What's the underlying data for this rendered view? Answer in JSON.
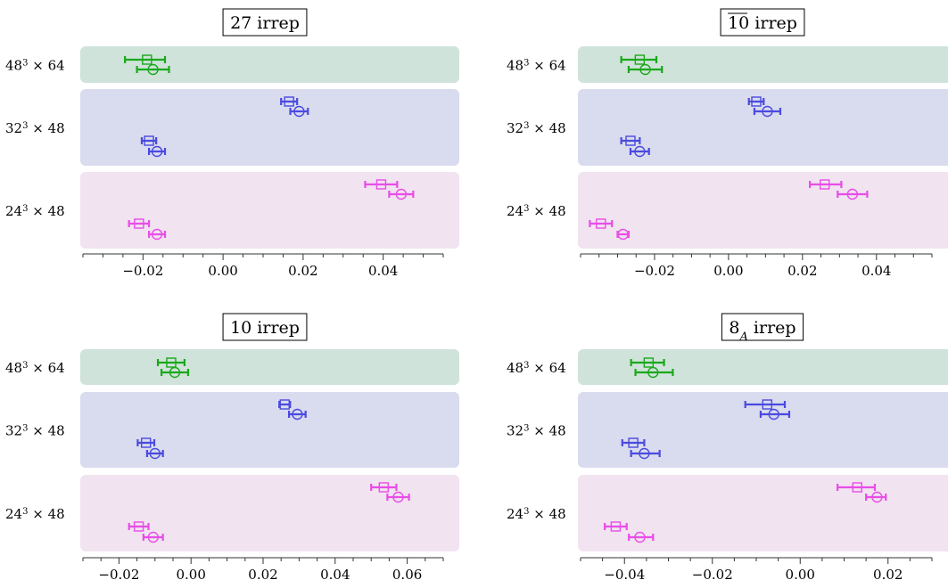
{
  "colors": {
    "band_48": "#cfe3da",
    "band_32": "#d9dbee",
    "band_24": "#f1e3f0",
    "green": "#1aa81a",
    "blue": "#4a4ae0",
    "magenta": "#e84de8"
  },
  "chart_data": [
    {
      "type": "scatter",
      "title": "27 irrep",
      "groups": [
        "48³ × 64",
        "32³ × 48",
        "24³ × 48"
      ],
      "xlim": [
        -0.035,
        0.055
      ],
      "xticks": [
        -0.02,
        0.0,
        0.02,
        0.04
      ],
      "tick_labels": [
        "−0.02",
        "0.00",
        "0.02",
        "0.04"
      ],
      "series": [
        {
          "group": 0,
          "marker": "square",
          "color": "green",
          "value": -0.019,
          "err_low": -0.0245,
          "err_high": -0.0145
        },
        {
          "group": 0,
          "marker": "circle",
          "color": "green",
          "value": -0.0175,
          "err_low": -0.0215,
          "err_high": -0.0135
        },
        {
          "group": 1,
          "marker": "square",
          "color": "blue",
          "value": 0.0165,
          "err_low": 0.0145,
          "err_high": 0.0185
        },
        {
          "group": 1,
          "marker": "circle",
          "color": "blue",
          "value": 0.019,
          "err_low": 0.0168,
          "err_high": 0.0212
        },
        {
          "group": 1,
          "marker": "square",
          "color": "blue",
          "value": -0.0185,
          "err_low": -0.0203,
          "err_high": -0.0167
        },
        {
          "group": 1,
          "marker": "circle",
          "color": "blue",
          "value": -0.0165,
          "err_low": -0.0185,
          "err_high": -0.0145
        },
        {
          "group": 2,
          "marker": "square",
          "color": "magenta",
          "value": 0.0395,
          "err_low": 0.0355,
          "err_high": 0.0435
        },
        {
          "group": 2,
          "marker": "circle",
          "color": "magenta",
          "value": 0.0445,
          "err_low": 0.0415,
          "err_high": 0.0475
        },
        {
          "group": 2,
          "marker": "square",
          "color": "magenta",
          "value": -0.021,
          "err_low": -0.0235,
          "err_high": -0.0185
        },
        {
          "group": 2,
          "marker": "circle",
          "color": "magenta",
          "value": -0.0165,
          "err_low": -0.0185,
          "err_high": -0.0145
        }
      ]
    },
    {
      "type": "scatter",
      "title": "10 irrep",
      "title_overline": true,
      "groups": [
        "48³ × 64",
        "32³ × 48",
        "24³ × 48"
      ],
      "xlim": [
        -0.04,
        0.055
      ],
      "xticks": [
        -0.02,
        0.0,
        0.02,
        0.04
      ],
      "tick_labels": [
        "−0.02",
        "0.00",
        "0.02",
        "0.04"
      ],
      "series": [
        {
          "group": 0,
          "marker": "square",
          "color": "green",
          "value": -0.024,
          "err_low": -0.029,
          "err_high": -0.0195
        },
        {
          "group": 0,
          "marker": "circle",
          "color": "green",
          "value": -0.0225,
          "err_low": -0.027,
          "err_high": -0.018
        },
        {
          "group": 1,
          "marker": "square",
          "color": "blue",
          "value": 0.0075,
          "err_low": 0.0055,
          "err_high": 0.0095
        },
        {
          "group": 1,
          "marker": "circle",
          "color": "blue",
          "value": 0.0105,
          "err_low": 0.007,
          "err_high": 0.014
        },
        {
          "group": 1,
          "marker": "square",
          "color": "blue",
          "value": -0.0265,
          "err_low": -0.029,
          "err_high": -0.024
        },
        {
          "group": 1,
          "marker": "circle",
          "color": "blue",
          "value": -0.024,
          "err_low": -0.0265,
          "err_high": -0.0215
        },
        {
          "group": 2,
          "marker": "square",
          "color": "magenta",
          "value": 0.026,
          "err_low": 0.022,
          "err_high": 0.0305
        },
        {
          "group": 2,
          "marker": "circle",
          "color": "magenta",
          "value": 0.0335,
          "err_low": 0.0295,
          "err_high": 0.0375
        },
        {
          "group": 2,
          "marker": "square",
          "color": "magenta",
          "value": -0.0345,
          "err_low": -0.0375,
          "err_high": -0.0315
        },
        {
          "group": 2,
          "marker": "circle",
          "color": "magenta",
          "value": -0.0285,
          "err_low": -0.03,
          "err_high": -0.027
        }
      ]
    },
    {
      "type": "scatter",
      "title": "10 irrep",
      "groups": [
        "48³ × 64",
        "32³ × 48",
        "24³ × 48"
      ],
      "xlim": [
        -0.03,
        0.07
      ],
      "xticks": [
        -0.02,
        0.0,
        0.02,
        0.04,
        0.06
      ],
      "tick_labels": [
        "−0.02",
        "0.00",
        "0.02",
        "0.04",
        "0.06"
      ],
      "series": [
        {
          "group": 0,
          "marker": "square",
          "color": "green",
          "value": -0.0055,
          "err_low": -0.0092,
          "err_high": -0.0018
        },
        {
          "group": 0,
          "marker": "circle",
          "color": "green",
          "value": -0.0045,
          "err_low": -0.0082,
          "err_high": -0.0008
        },
        {
          "group": 1,
          "marker": "square",
          "color": "blue",
          "value": 0.026,
          "err_low": 0.0245,
          "err_high": 0.0275
        },
        {
          "group": 1,
          "marker": "circle",
          "color": "blue",
          "value": 0.0295,
          "err_low": 0.0272,
          "err_high": 0.0318
        },
        {
          "group": 1,
          "marker": "square",
          "color": "blue",
          "value": -0.0125,
          "err_low": -0.0148,
          "err_high": -0.0102
        },
        {
          "group": 1,
          "marker": "circle",
          "color": "blue",
          "value": -0.01,
          "err_low": -0.0122,
          "err_high": -0.0078
        },
        {
          "group": 2,
          "marker": "square",
          "color": "magenta",
          "value": 0.0535,
          "err_low": 0.05,
          "err_high": 0.057
        },
        {
          "group": 2,
          "marker": "circle",
          "color": "magenta",
          "value": 0.0575,
          "err_low": 0.0545,
          "err_high": 0.0605
        },
        {
          "group": 2,
          "marker": "square",
          "color": "magenta",
          "value": -0.0145,
          "err_low": -0.0172,
          "err_high": -0.0118
        },
        {
          "group": 2,
          "marker": "circle",
          "color": "magenta",
          "value": -0.0105,
          "err_low": -0.0132,
          "err_high": -0.0078
        }
      ]
    },
    {
      "type": "scatter",
      "title": "8",
      "title_sub": "A",
      "title_suffix": " irrep",
      "groups": [
        "48³ × 64",
        "32³ × 48",
        "24³ × 48"
      ],
      "xlim": [
        -0.05,
        0.03
      ],
      "xticks": [
        -0.04,
        -0.02,
        0.0,
        0.02
      ],
      "tick_labels": [
        "−0.04",
        "−0.02",
        "0.00",
        "0.02"
      ],
      "series": [
        {
          "group": 0,
          "marker": "square",
          "color": "green",
          "value": -0.0345,
          "err_low": -0.0385,
          "err_high": -0.031
        },
        {
          "group": 0,
          "marker": "circle",
          "color": "green",
          "value": -0.0335,
          "err_low": -0.0375,
          "err_high": -0.029
        },
        {
          "group": 1,
          "marker": "square",
          "color": "blue",
          "value": -0.0075,
          "err_low": -0.0125,
          "err_high": -0.0035
        },
        {
          "group": 1,
          "marker": "circle",
          "color": "blue",
          "value": -0.006,
          "err_low": -0.009,
          "err_high": -0.0025
        },
        {
          "group": 1,
          "marker": "square",
          "color": "blue",
          "value": -0.038,
          "err_low": -0.0405,
          "err_high": -0.0355
        },
        {
          "group": 1,
          "marker": "circle",
          "color": "blue",
          "value": -0.0355,
          "err_low": -0.0385,
          "err_high": -0.032
        },
        {
          "group": 2,
          "marker": "square",
          "color": "magenta",
          "value": 0.013,
          "err_low": 0.0085,
          "err_high": 0.017
        },
        {
          "group": 2,
          "marker": "circle",
          "color": "magenta",
          "value": 0.0175,
          "err_low": 0.015,
          "err_high": 0.0195
        },
        {
          "group": 2,
          "marker": "square",
          "color": "magenta",
          "value": -0.042,
          "err_low": -0.0445,
          "err_high": -0.0395
        },
        {
          "group": 2,
          "marker": "circle",
          "color": "magenta",
          "value": -0.0365,
          "err_low": -0.039,
          "err_high": -0.0335
        }
      ]
    }
  ]
}
